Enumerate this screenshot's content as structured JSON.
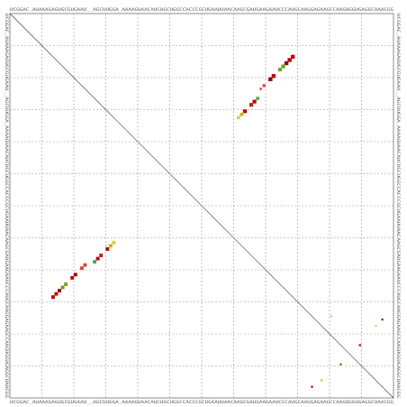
{
  "chart_data": {
    "type": "dotplot",
    "sequence": "UCGGAC_AUAAAGAGUGCGUGAAU__AGCUUGGA_AAAAGUAACAUCUGCUGGCCACCCGCUGAAUUAACAAGCGAUGAAGAAUCCCAUGCAAGGAGAAGCCAAGUGGUGAGGCUAACGG",
    "gridlines": [
      10,
      20,
      30,
      40,
      50,
      60,
      70,
      80,
      90,
      100,
      110
    ],
    "pairs": [
      {
        "i": 14,
        "j": 89,
        "p": 0.9,
        "color": "#c00000"
      },
      {
        "i": 15,
        "j": 88,
        "p": 0.9,
        "color": "#c00000"
      },
      {
        "i": 16,
        "j": 87,
        "p": 0.9,
        "color": "#a00000"
      },
      {
        "i": 17,
        "j": 86,
        "p": 0.8,
        "color": "#60a020"
      },
      {
        "i": 18,
        "j": 85,
        "p": 0.8,
        "color": "#80a020"
      },
      {
        "i": 20,
        "j": 83,
        "p": 0.9,
        "color": "#c00000"
      },
      {
        "i": 21,
        "j": 82,
        "p": 0.9,
        "color": "#a00000"
      },
      {
        "i": 23,
        "j": 80,
        "p": 0.5,
        "color": "#e04040"
      },
      {
        "i": 24,
        "j": 79,
        "p": 0.3,
        "color": "#e04040"
      },
      {
        "i": 27,
        "j": 78,
        "p": 0.6,
        "color": "#40b040"
      },
      {
        "i": 28,
        "j": 77,
        "p": 0.8,
        "color": "#c00000"
      },
      {
        "i": 29,
        "j": 76,
        "p": 0.8,
        "color": "#c02020"
      },
      {
        "i": 31,
        "j": 74,
        "p": 0.8,
        "color": "#c00000"
      },
      {
        "i": 32,
        "j": 73,
        "p": 0.7,
        "color": "#c0c000"
      },
      {
        "i": 33,
        "j": 72,
        "p": 0.6,
        "color": "#d0d040"
      }
    ],
    "lower_pairs": [
      {
        "i": 95,
        "j": 117,
        "p": 0.4,
        "color": "#c00000"
      },
      {
        "i": 98,
        "j": 115,
        "p": 0.4,
        "color": "#d0c040"
      },
      {
        "i": 104,
        "j": 110,
        "p": 0.4,
        "color": "#c05000"
      },
      {
        "i": 110,
        "j": 104,
        "p": 0.4,
        "color": "#c00000"
      },
      {
        "i": 115,
        "j": 98,
        "p": 0.3,
        "color": "#d0c040"
      },
      {
        "i": 117,
        "j": 96,
        "p": 0.4,
        "color": "#c00000"
      },
      {
        "i": 101,
        "j": 95,
        "p": 0.3,
        "color": "#b0b0b0"
      }
    ]
  }
}
